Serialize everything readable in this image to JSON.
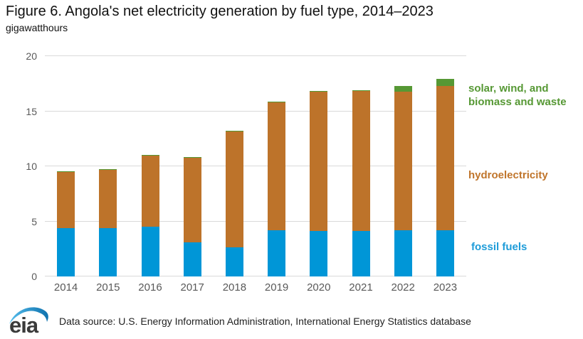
{
  "header": {
    "title": "Figure 6. Angola's net electricity generation by fuel type, 2014–2023",
    "subtitle": "gigawatthours"
  },
  "chart_data": {
    "type": "bar",
    "stacked": true,
    "title": "Figure 6. Angola's net electricity generation by fuel type, 2014–2023",
    "ylabel": "gigawatthours",
    "xlabel": "",
    "categories": [
      "2014",
      "2015",
      "2016",
      "2017",
      "2018",
      "2019",
      "2020",
      "2021",
      "2022",
      "2023"
    ],
    "series": [
      {
        "name": "fossil fuels",
        "color": "#0096d7",
        "values": [
          4.4,
          4.4,
          4.5,
          3.1,
          2.65,
          4.2,
          4.1,
          4.15,
          4.2,
          4.2
        ]
      },
      {
        "name": "hydroelectricity",
        "color": "#bd732a",
        "values": [
          5.1,
          5.3,
          6.5,
          7.7,
          10.5,
          11.6,
          12.65,
          12.7,
          12.55,
          13.1
        ]
      },
      {
        "name": "solar, wind, and biomass and waste",
        "color": "#569834",
        "values": [
          0.05,
          0.05,
          0.05,
          0.05,
          0.05,
          0.05,
          0.05,
          0.05,
          0.55,
          0.65
        ]
      }
    ],
    "totals": [
      9.55,
      9.75,
      11.05,
      10.85,
      13.2,
      15.85,
      16.8,
      16.9,
      17.3,
      17.95
    ],
    "ylim": [
      0,
      20
    ],
    "yticks": [
      0,
      5,
      10,
      15,
      20
    ],
    "grid": true,
    "legend_position": "right"
  },
  "axes": {
    "tick_color": "#595959",
    "grid_color": "#d9d9d9"
  },
  "legend": {
    "items": [
      {
        "label": "solar, wind, and biomass and waste",
        "color": "#569834"
      },
      {
        "label": "hydroelectricity",
        "color": "#c0752b"
      },
      {
        "label": "fossil fuels",
        "color": "#1e9cd9"
      }
    ]
  },
  "footer": {
    "logo_text": "eia",
    "data_source": "Data source: U.S. Energy Information Administration, International Energy Statistics database"
  }
}
